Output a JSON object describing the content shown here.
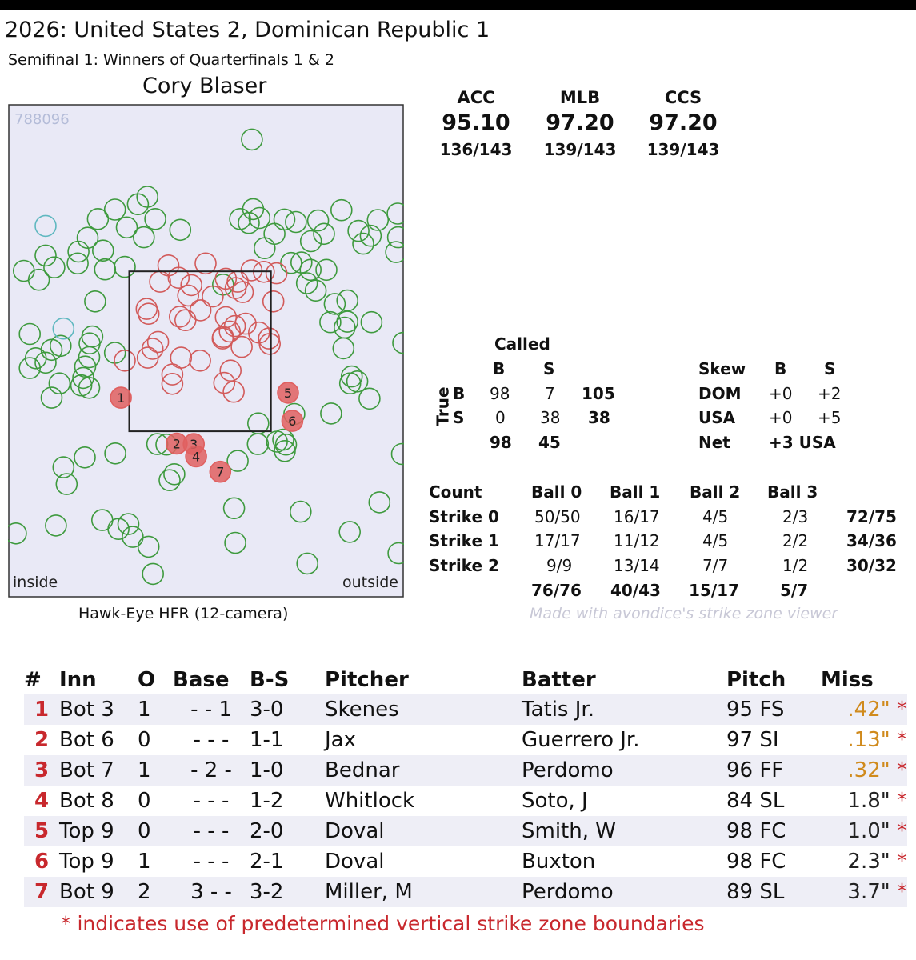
{
  "header": {
    "title": "2026: United States 2, Dominican Republic 1",
    "subtitle": "Semifinal 1: Winners of Quarterfinals 1 & 2",
    "umpire": "Cory Blaser"
  },
  "zone_panel": {
    "id_label": "788096",
    "inside_label": "inside",
    "outside_label": "outside",
    "footer": "Hawk-Eye HFR (12-camera)"
  },
  "accuracy": [
    {
      "label": "ACC",
      "value": "95.10",
      "ratio": "136/143"
    },
    {
      "label": "MLB",
      "value": "97.20",
      "ratio": "139/143"
    },
    {
      "label": "CCS",
      "value": "97.20",
      "ratio": "139/143"
    }
  ],
  "confusion": {
    "title": "Called",
    "axis": "True",
    "col_labels": [
      "B",
      "S"
    ],
    "rows": [
      {
        "label": "B",
        "cells": [
          "98",
          "7"
        ],
        "total": "105"
      },
      {
        "label": "S",
        "cells": [
          "0",
          "38"
        ],
        "total": "38"
      }
    ],
    "col_totals": [
      "98",
      "45"
    ]
  },
  "skew": {
    "header": [
      "Skew",
      "B",
      "S"
    ],
    "rows": [
      {
        "label": "DOM",
        "b": "+0",
        "s": "+2"
      },
      {
        "label": "USA",
        "b": "+0",
        "s": "+5"
      }
    ],
    "net_label": "Net",
    "net_value": "+3 USA"
  },
  "count_table": {
    "header": [
      "Count",
      "Ball 0",
      "Ball 1",
      "Ball 2",
      "Ball 3"
    ],
    "rows": [
      {
        "label": "Strike 0",
        "cells": [
          "50/50",
          "16/17",
          "4/5",
          "2/3"
        ],
        "total": "72/75"
      },
      {
        "label": "Strike 1",
        "cells": [
          "17/17",
          "11/12",
          "4/5",
          "2/2"
        ],
        "total": "34/36"
      },
      {
        "label": "Strike 2",
        "cells": [
          "9/9",
          "13/14",
          "7/7",
          "1/2"
        ],
        "total": "30/32"
      }
    ],
    "col_totals": [
      "76/76",
      "40/43",
      "15/17",
      "5/7"
    ]
  },
  "watermark": "Made with avondice's strike zone viewer",
  "missed_calls": {
    "header": [
      "#",
      "Inn",
      "O",
      "Base",
      "B-S",
      "Pitcher",
      "Batter",
      "Pitch",
      "Miss"
    ],
    "rows": [
      {
        "num": "1",
        "inn": "Bot 3",
        "o": "1",
        "base": "- - 1",
        "bs": "3-0",
        "pitcher": "Skenes",
        "batter": "Tatis Jr.",
        "pitch": "95  FS",
        "miss": ".42\"",
        "star": "*",
        "miss_color": "#d08a1c"
      },
      {
        "num": "2",
        "inn": "Bot 6",
        "o": "0",
        "base": "- - -",
        "bs": "1-1",
        "pitcher": "Jax",
        "batter": "Guerrero Jr.",
        "pitch": "97  SI",
        "miss": ".13\"",
        "star": "*",
        "miss_color": "#d08a1c"
      },
      {
        "num": "3",
        "inn": "Bot 7",
        "o": "1",
        "base": "- 2 -",
        "bs": "1-0",
        "pitcher": "Bednar",
        "batter": "Perdomo",
        "pitch": "96  FF",
        "miss": ".32\"",
        "star": "*",
        "miss_color": "#d08a1c"
      },
      {
        "num": "4",
        "inn": "Bot 8",
        "o": "0",
        "base": "- - -",
        "bs": "1-2",
        "pitcher": "Whitlock",
        "batter": "Soto, J",
        "pitch": "84  SL",
        "miss": "1.8\"",
        "star": "*",
        "miss_color": "#222222"
      },
      {
        "num": "5",
        "inn": "Top 9",
        "o": "0",
        "base": "- - -",
        "bs": "2-0",
        "pitcher": "Doval",
        "batter": "Smith, W",
        "pitch": "98  FC",
        "miss": "1.0\"",
        "star": "*",
        "miss_color": "#222222"
      },
      {
        "num": "6",
        "inn": "Top 9",
        "o": "1",
        "base": "- - -",
        "bs": "2-1",
        "pitcher": "Doval",
        "batter": "Buxton",
        "pitch": "98  FC",
        "miss": "2.3\"",
        "star": "*",
        "miss_color": "#222222"
      },
      {
        "num": "7",
        "inn": "Bot 9",
        "o": "2",
        "base": "3 - -",
        "bs": "3-2",
        "pitcher": "Miller, M",
        "batter": "Perdomo",
        "pitch": "89  SL",
        "miss": "3.7\"",
        "star": "*",
        "miss_color": "#222222"
      }
    ],
    "note": "* indicates use of predetermined vertical strike zone boundaries"
  },
  "chart_data": {
    "type": "scatter",
    "x_range": [
      0,
      100
    ],
    "y_range": [
      0,
      100
    ],
    "strike_zone": {
      "x": [
        30.6,
        66.4
      ],
      "y": [
        33.7,
        66.1
      ]
    },
    "colors": {
      "ball": "#3e9a3e",
      "strike": "#d25a5a",
      "missed": "#e06060",
      "background": "#e9e9f6",
      "teal": "#5fb8c0"
    },
    "balls": [
      [
        61.6,
        92.8
      ],
      [
        37.2,
        76.7
      ],
      [
        32.8,
        79.7
      ],
      [
        27.0,
        78.6
      ],
      [
        22.7,
        76.7
      ],
      [
        34.3,
        73.0
      ],
      [
        35.2,
        81.2
      ],
      [
        30.0,
        75.0
      ],
      [
        24.0,
        70.3
      ],
      [
        17.8,
        70.1
      ],
      [
        20.1,
        72.9
      ],
      [
        17.6,
        67.7
      ],
      [
        11.7,
        66.9
      ],
      [
        7.8,
        64.4
      ],
      [
        4.0,
        66.2
      ],
      [
        9.5,
        69.3
      ],
      [
        22.0,
        60.0
      ],
      [
        24.5,
        66.5
      ],
      [
        20.6,
        51.5
      ],
      [
        20.5,
        48.7
      ],
      [
        21.3,
        52.9
      ],
      [
        19.5,
        46.8
      ],
      [
        11.0,
        50.2
      ],
      [
        7.0,
        48.5
      ],
      [
        13.3,
        51.0
      ],
      [
        9.5,
        47.6
      ],
      [
        5.5,
        46.5
      ],
      [
        13.0,
        43.4
      ],
      [
        11.0,
        40.5
      ],
      [
        19.0,
        44.5
      ],
      [
        18.5,
        43.0
      ],
      [
        27.0,
        49.6
      ],
      [
        58.6,
        76.7
      ],
      [
        61.9,
        78.7
      ],
      [
        63.5,
        76.9
      ],
      [
        60.8,
        75.9
      ],
      [
        69.8,
        76.6
      ],
      [
        72.7,
        76.1
      ],
      [
        78.3,
        76.4
      ],
      [
        67.3,
        73.7
      ],
      [
        64.8,
        70.8
      ],
      [
        76.5,
        72.2
      ],
      [
        89.7,
        71.7
      ],
      [
        91.6,
        73.3
      ],
      [
        98.4,
        77.8
      ],
      [
        93.4,
        76.5
      ],
      [
        84.2,
        78.5
      ],
      [
        88.5,
        74.3
      ],
      [
        79.8,
        73.7
      ],
      [
        74.1,
        67.9
      ],
      [
        76.4,
        66.4
      ],
      [
        80.4,
        66.4
      ],
      [
        71.5,
        67.8
      ],
      [
        75.5,
        63.7
      ],
      [
        77.7,
        62.2
      ],
      [
        82.5,
        59.5
      ],
      [
        85.7,
        55.9
      ],
      [
        81.4,
        55.8
      ],
      [
        91.8,
        55.8
      ],
      [
        84.7,
        50.5
      ],
      [
        85.0,
        54.7
      ],
      [
        86.8,
        44.8
      ],
      [
        88.2,
        43.8
      ],
      [
        91.3,
        40.3
      ],
      [
        86.4,
        43.4
      ],
      [
        81.6,
        37.3
      ],
      [
        72.3,
        37.2
      ],
      [
        63.2,
        35.3
      ],
      [
        67.9,
        31.6
      ],
      [
        63.1,
        31.1
      ],
      [
        70.2,
        31.0
      ],
      [
        69.5,
        32.0
      ],
      [
        58.0,
        27.7
      ],
      [
        42.0,
        25.0
      ],
      [
        37.7,
        31.1
      ],
      [
        40.8,
        23.8
      ],
      [
        19.4,
        28.4
      ],
      [
        14.8,
        23.0
      ],
      [
        14.0,
        26.4
      ],
      [
        12.1,
        14.6
      ],
      [
        27.9,
        13.9
      ],
      [
        30.4,
        14.9
      ],
      [
        35.5,
        10.3
      ],
      [
        57.1,
        18.1
      ],
      [
        57.4,
        11.1
      ],
      [
        73.9,
        17.4
      ],
      [
        75.6,
        6.9
      ],
      [
        86.3,
        13.3
      ],
      [
        93.8,
        19.3
      ],
      [
        98.6,
        9.0
      ],
      [
        99.5,
        29.1
      ],
      [
        99.8,
        51.6
      ],
      [
        2.0,
        13.0
      ],
      [
        31.5,
        12.3
      ],
      [
        36.6,
        4.8
      ],
      [
        27.1,
        29.2
      ],
      [
        23.8,
        15.7
      ],
      [
        69.9,
        29.7
      ],
      [
        54.3,
        63.4
      ],
      [
        43.5,
        74.5
      ],
      [
        29.5,
        67.0
      ],
      [
        5.5,
        53.4
      ],
      [
        98.0,
        70.0
      ],
      [
        85.7,
        60.2
      ],
      [
        20.5,
        42.5
      ],
      [
        40.0,
        31.0
      ],
      [
        98.5,
        73.0
      ]
    ],
    "strikes": [
      [
        43.4,
        56.9
      ],
      [
        48.6,
        58.2
      ],
      [
        44.8,
        56.2
      ],
      [
        55.0,
        56.8
      ],
      [
        57.3,
        55.0
      ],
      [
        60.0,
        55.5
      ],
      [
        54.2,
        52.5
      ],
      [
        54.3,
        52.8
      ],
      [
        56.0,
        53.9
      ],
      [
        66.1,
        51.4
      ],
      [
        65.9,
        52.5
      ],
      [
        63.4,
        53.7
      ],
      [
        35.3,
        48.6
      ],
      [
        43.7,
        48.6
      ],
      [
        29.5,
        48.0
      ],
      [
        36.5,
        50.4
      ],
      [
        37.9,
        51.8
      ],
      [
        35.5,
        57.5
      ],
      [
        41.5,
        43.3
      ],
      [
        41.5,
        45.2
      ],
      [
        48.5,
        48.0
      ],
      [
        54.6,
        43.5
      ],
      [
        57.0,
        41.7
      ],
      [
        59.0,
        50.8
      ],
      [
        56.2,
        46.0
      ],
      [
        64.6,
        66.0
      ],
      [
        67.0,
        60.0
      ],
      [
        43.1,
        64.8
      ],
      [
        46.3,
        63.3
      ],
      [
        49.9,
        67.7
      ],
      [
        40.5,
        67.3
      ],
      [
        38.4,
        64.0
      ],
      [
        58.0,
        64.0
      ],
      [
        55.0,
        64.6
      ],
      [
        61.5,
        66.3
      ],
      [
        51.7,
        61.0
      ],
      [
        57.5,
        62.7
      ],
      [
        67.8,
        65.7
      ],
      [
        45.5,
        61.2
      ],
      [
        59.3,
        61.9
      ],
      [
        35.0,
        58.5
      ]
    ],
    "teal": [
      [
        14.0,
        54.5
      ],
      [
        9.5,
        75.3
      ]
    ],
    "missed": [
      {
        "label": "1",
        "x": 28.5,
        "y": 40.5
      },
      {
        "label": "2",
        "x": 42.6,
        "y": 31.2
      },
      {
        "label": "3",
        "x": 46.9,
        "y": 31.1
      },
      {
        "label": "4",
        "x": 47.5,
        "y": 28.6
      },
      {
        "label": "5",
        "x": 70.7,
        "y": 41.5
      },
      {
        "label": "6",
        "x": 71.8,
        "y": 35.8
      },
      {
        "label": "7",
        "x": 53.6,
        "y": 25.5
      }
    ]
  }
}
